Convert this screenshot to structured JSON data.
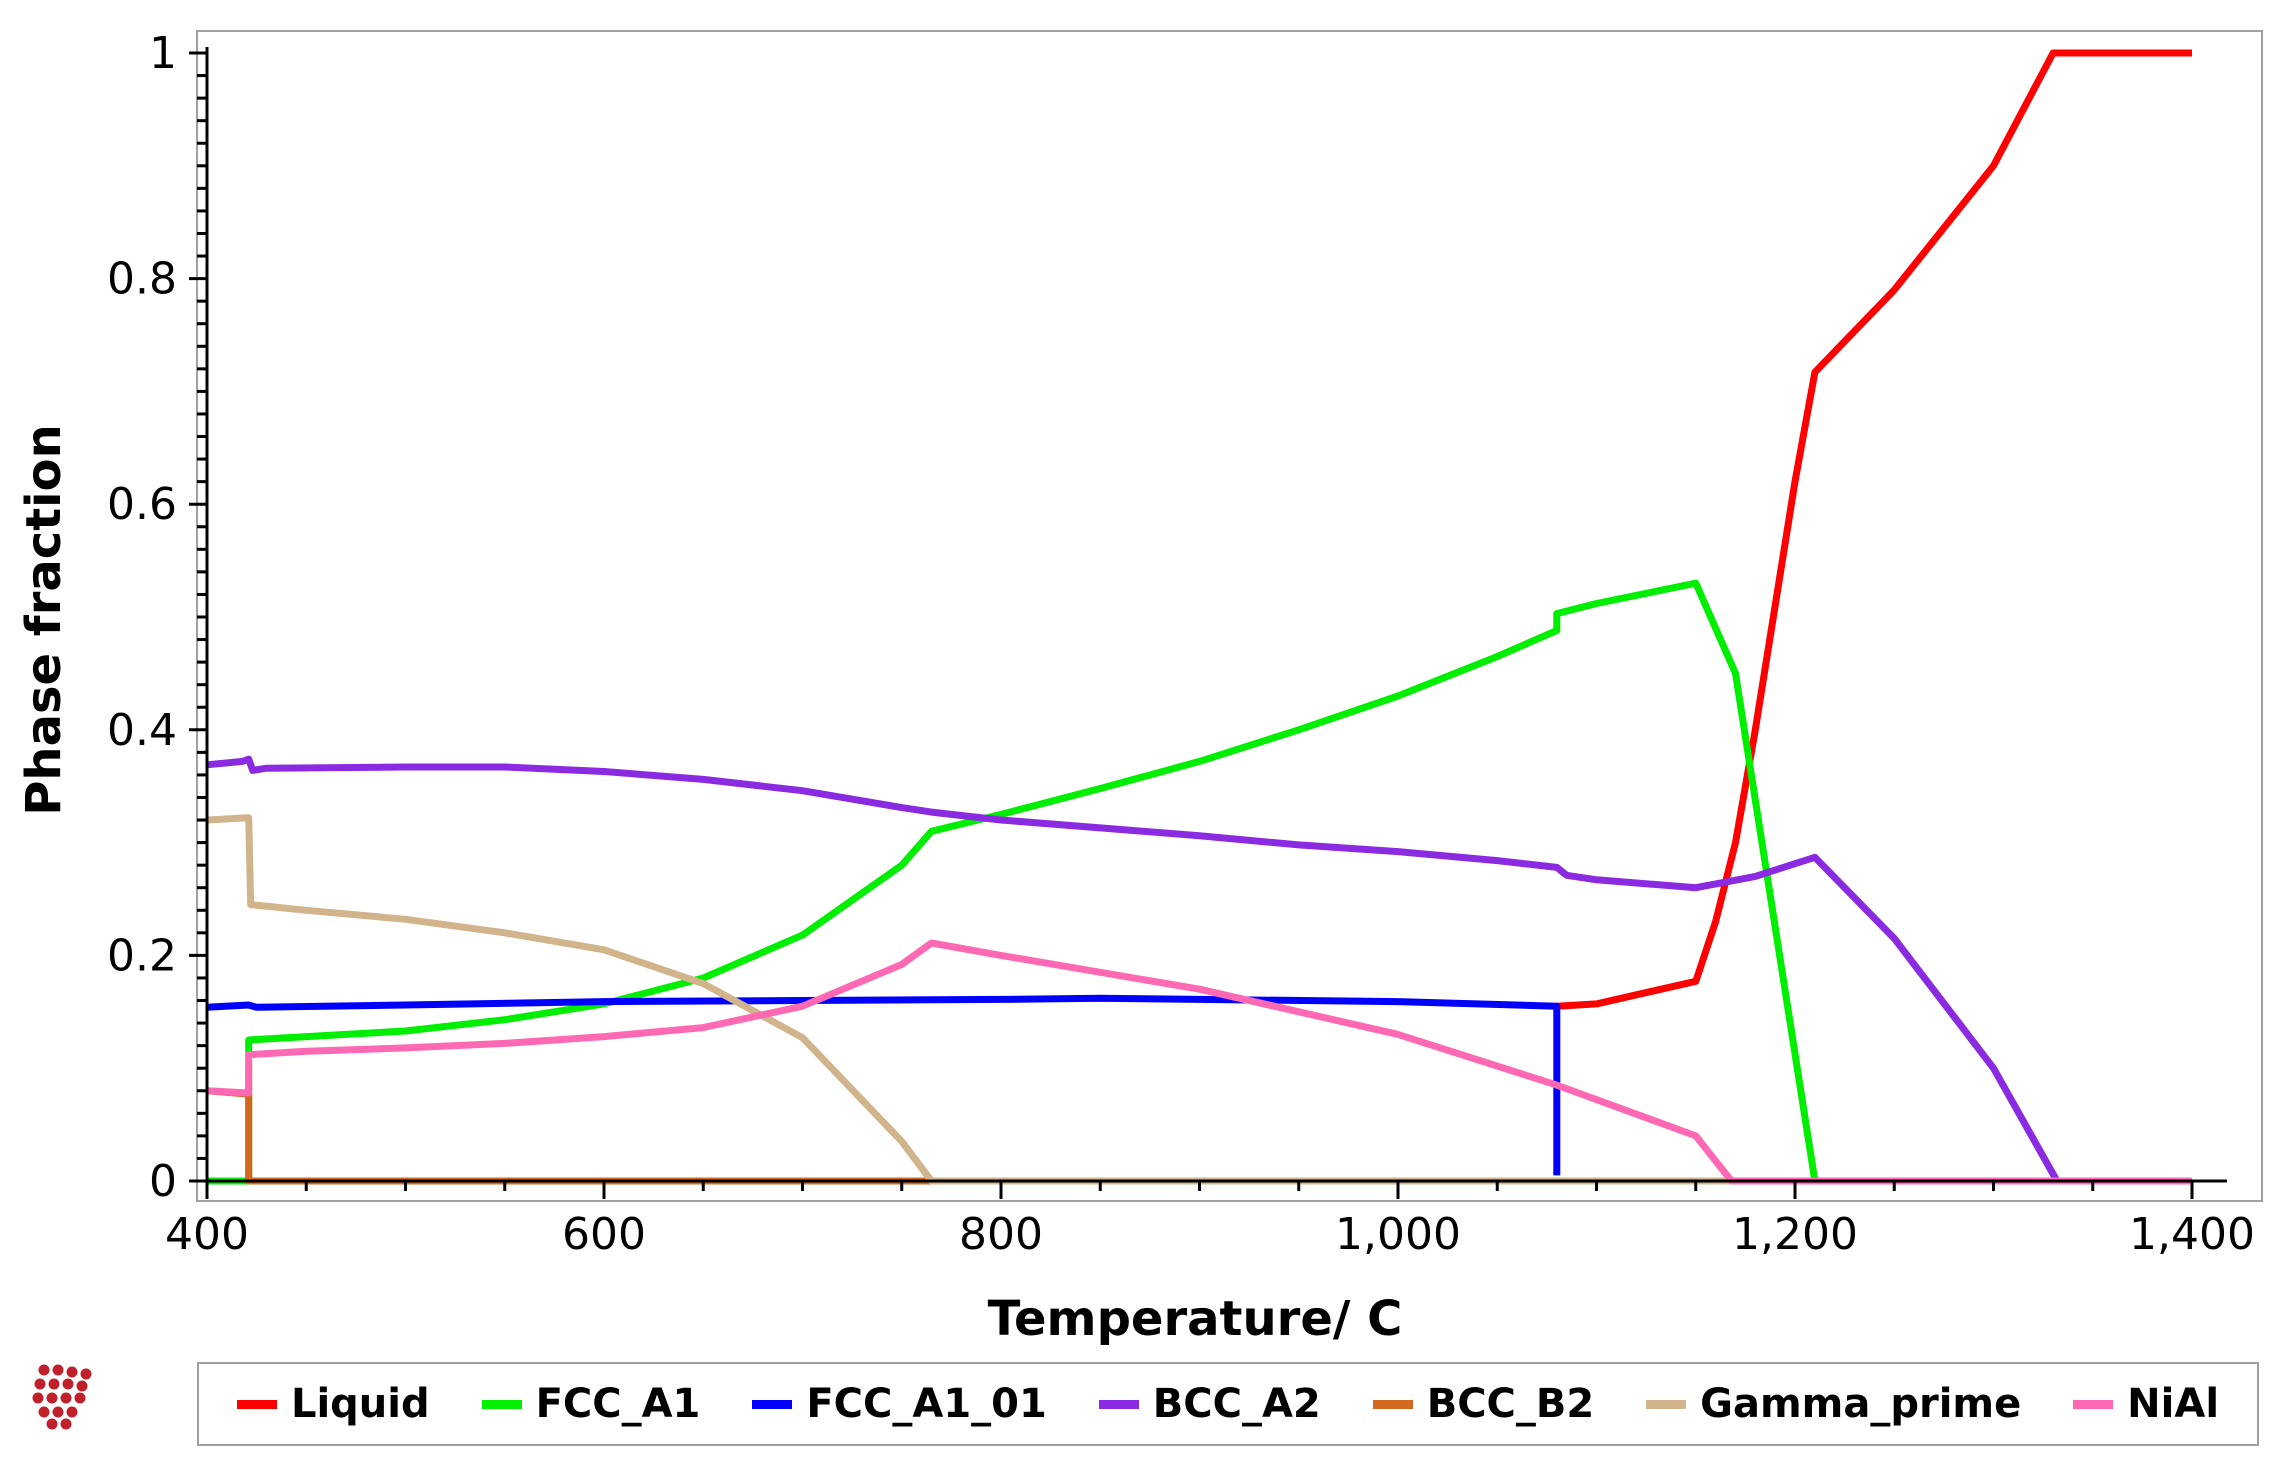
{
  "chart_data": {
    "type": "line",
    "title": "",
    "xlabel": "Temperature/ C",
    "ylabel": "Phase fraction",
    "xlim": [
      400,
      1400
    ],
    "ylim": [
      0,
      1
    ],
    "x_ticks": [
      400,
      600,
      800,
      1000,
      1200,
      1400
    ],
    "x_tick_labels": [
      "400",
      "600",
      "800",
      "1,000",
      "1,200",
      "1,400"
    ],
    "y_ticks": [
      0,
      0.2,
      0.4,
      0.6,
      0.8,
      1
    ],
    "y_tick_labels": [
      "0",
      "0.2",
      "0.4",
      "0.6",
      "0.8",
      "1"
    ],
    "grid": false,
    "legend_position": "bottom",
    "series": [
      {
        "name": "Liquid",
        "color": "#ff0000",
        "x": [
          1080,
          1100,
          1150,
          1160,
          1170,
          1180,
          1200,
          1210,
          1250,
          1300,
          1330,
          1400
        ],
        "y": [
          0.155,
          0.157,
          0.177,
          0.23,
          0.3,
          0.4,
          0.62,
          0.717,
          0.79,
          0.9,
          1.0,
          1.0
        ]
      },
      {
        "name": "FCC_A1",
        "color": "#00ee00",
        "x": [
          400,
          421,
          421,
          450,
          500,
          550,
          600,
          650,
          700,
          750,
          765,
          800,
          850,
          900,
          950,
          1000,
          1050,
          1080,
          1080,
          1100,
          1150,
          1170,
          1210,
          1210,
          1400
        ],
        "y": [
          0,
          0,
          0.125,
          0.128,
          0.133,
          0.143,
          0.157,
          0.18,
          0.218,
          0.28,
          0.31,
          0.325,
          0.348,
          0.372,
          0.4,
          0.43,
          0.465,
          0.488,
          0.503,
          0.512,
          0.53,
          0.45,
          0.0,
          0.0,
          0.0
        ]
      },
      {
        "name": "FCC_A1_01",
        "color": "#0000ff",
        "x": [
          400,
          421,
          425,
          500,
          600,
          700,
          800,
          850,
          900,
          1000,
          1080,
          1080
        ],
        "y": [
          0.154,
          0.156,
          0.154,
          0.156,
          0.159,
          0.16,
          0.161,
          0.162,
          0.161,
          0.159,
          0.155,
          0.005
        ]
      },
      {
        "name": "BCC_A2",
        "color": "#8a2be2",
        "x": [
          400,
          418,
          421,
          423,
          430,
          500,
          550,
          600,
          650,
          700,
          750,
          765,
          800,
          850,
          900,
          950,
          1000,
          1050,
          1080,
          1085,
          1100,
          1150,
          1180,
          1210,
          1250,
          1300,
          1332,
          1400
        ],
        "y": [
          0.369,
          0.372,
          0.374,
          0.364,
          0.366,
          0.367,
          0.367,
          0.363,
          0.356,
          0.346,
          0.331,
          0.327,
          0.32,
          0.313,
          0.306,
          0.298,
          0.292,
          0.284,
          0.278,
          0.271,
          0.267,
          0.26,
          0.27,
          0.287,
          0.215,
          0.1,
          0.0,
          0.0
        ]
      },
      {
        "name": "BCC_B2",
        "color": "#d2691e",
        "x": [
          400,
          421,
          421,
          1400
        ],
        "y": [
          0.08,
          0.077,
          0.0,
          0.0
        ]
      },
      {
        "name": "Gamma_prime",
        "color": "#d2b48c",
        "x": [
          400,
          421,
          422,
          450,
          500,
          550,
          600,
          650,
          700,
          750,
          765,
          1400
        ],
        "y": [
          0.32,
          0.322,
          0.245,
          0.24,
          0.232,
          0.22,
          0.205,
          0.175,
          0.127,
          0.035,
          0.0,
          0.0
        ]
      },
      {
        "name": "NiAl",
        "color": "#ff69b4",
        "x": [
          400,
          421,
          421,
          450,
          500,
          550,
          600,
          650,
          700,
          750,
          765,
          800,
          900,
          1000,
          1080,
          1150,
          1168,
          1400
        ],
        "y": [
          0.08,
          0.078,
          0.112,
          0.115,
          0.118,
          0.122,
          0.128,
          0.136,
          0.155,
          0.192,
          0.211,
          0.2,
          0.17,
          0.13,
          0.085,
          0.04,
          0.0,
          0.0
        ]
      }
    ]
  },
  "legend": {
    "items": [
      {
        "label": "Liquid",
        "color": "#ff0000"
      },
      {
        "label": "FCC_A1",
        "color": "#00ee00"
      },
      {
        "label": "FCC_A1_01",
        "color": "#0000ff"
      },
      {
        "label": "BCC_A2",
        "color": "#8a2be2"
      },
      {
        "label": "BCC_B2",
        "color": "#d2691e"
      },
      {
        "label": "Gamma_prime",
        "color": "#d2b48c"
      },
      {
        "label": "NiAl",
        "color": "#ff69b4"
      }
    ]
  },
  "logo": {
    "icon": "molecule-cluster-icon",
    "color": "#c0202a"
  }
}
